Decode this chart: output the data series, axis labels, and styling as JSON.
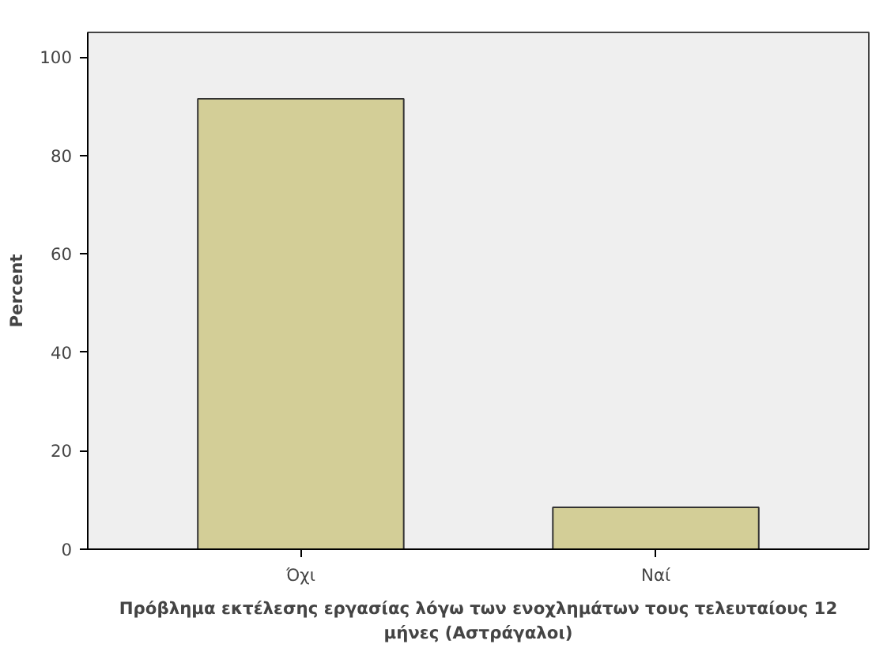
{
  "chart_data": {
    "type": "bar",
    "xlabel": "Πρόβλημα εκτέλεσης εργασίας λόγω των ενοχλημάτων τους τελευταίους 12\nμήνες (Αστράγαλοι)",
    "ylabel": "Percent",
    "categories": [
      "Όχι",
      "Ναί"
    ],
    "values": [
      91.5,
      8.5
    ],
    "color": "#d3ce97",
    "ylim": [
      0,
      105
    ],
    "yticks": [
      0,
      20,
      40,
      60,
      80,
      100
    ],
    "grid": false
  }
}
